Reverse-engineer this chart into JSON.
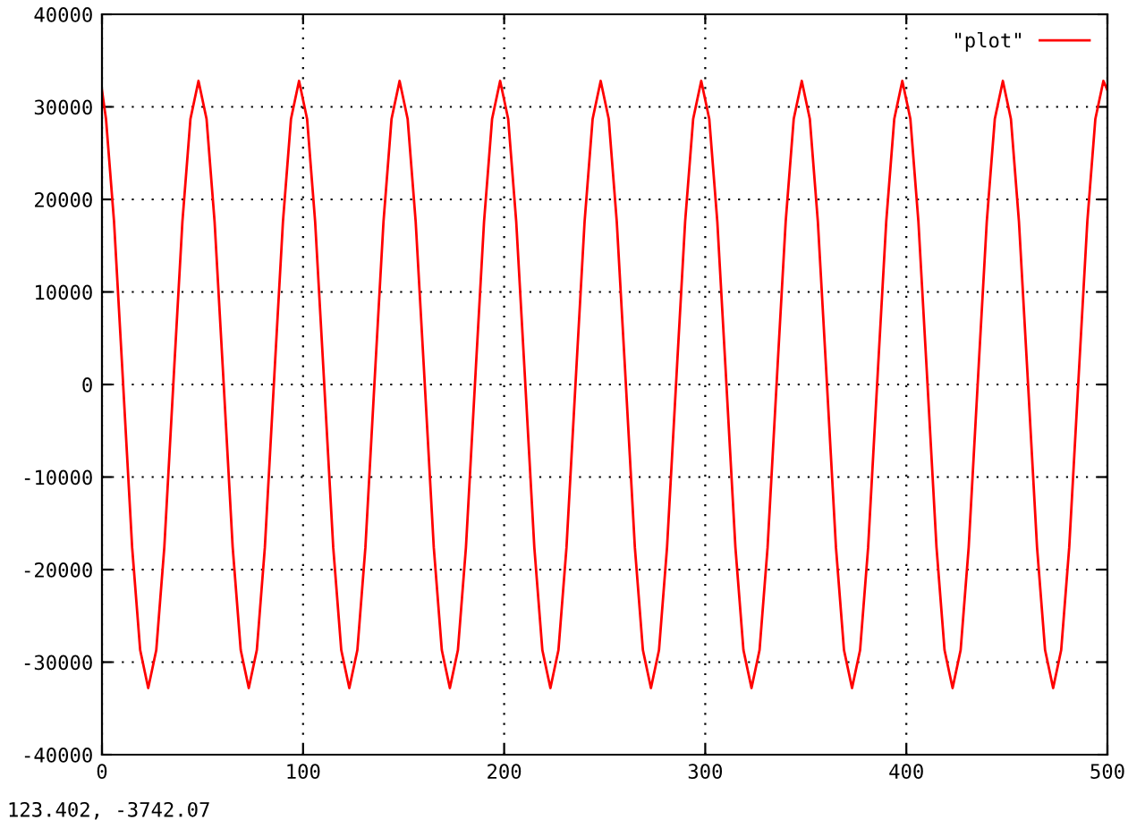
{
  "chart_data": {
    "type": "line",
    "xlim": [
      0,
      500
    ],
    "ylim": [
      -40000,
      40000
    ],
    "xticks": [
      0,
      100,
      200,
      300,
      400,
      500
    ],
    "yticks": [
      -40000,
      -30000,
      -20000,
      -10000,
      0,
      10000,
      20000,
      30000,
      40000
    ],
    "grid": true,
    "legend": "top right",
    "marker": "none",
    "line_style": "solid",
    "annotations": [
      "123.402, -3742.07"
    ],
    "series": [
      {
        "name": "\"plot\"",
        "color": "#ff0000",
        "x": [
          0,
          2,
          6,
          10,
          15,
          19,
          23,
          27,
          31,
          36,
          40,
          44,
          48,
          52,
          56,
          60,
          65,
          69,
          73,
          77,
          81,
          86,
          90,
          94,
          98,
          102,
          106,
          110,
          115,
          119,
          123,
          127,
          131,
          136,
          140,
          144,
          148,
          152,
          156,
          160,
          165,
          169,
          173,
          177,
          181,
          186,
          190,
          194,
          198,
          202,
          206,
          210,
          215,
          219,
          223,
          227,
          231,
          236,
          240,
          244,
          248,
          252,
          256,
          260,
          265,
          269,
          273,
          277,
          281,
          286,
          290,
          294,
          298,
          302,
          306,
          310,
          315,
          319,
          323,
          327,
          331,
          336,
          340,
          344,
          348,
          352,
          356,
          360,
          365,
          369,
          373,
          377,
          381,
          386,
          390,
          394,
          398,
          402,
          406,
          410,
          415,
          419,
          423,
          427,
          431,
          436,
          440,
          444,
          448,
          452,
          456,
          460,
          465,
          469,
          473,
          477,
          481,
          486,
          490,
          494,
          498,
          500
        ],
        "values": [
          31800,
          28700,
          17600,
          2100,
          -17600,
          -28700,
          -32800,
          -28700,
          -17600,
          2100,
          17600,
          28700,
          32800,
          28700,
          17600,
          2100,
          -17600,
          -28700,
          -32800,
          -28700,
          -17600,
          2100,
          17600,
          28700,
          32800,
          28700,
          17600,
          2100,
          -17600,
          -28700,
          -32800,
          -28700,
          -17600,
          2100,
          17600,
          28700,
          32800,
          28700,
          17600,
          2100,
          -17600,
          -28700,
          -32800,
          -28700,
          -17600,
          2100,
          17600,
          28700,
          32800,
          28700,
          17600,
          2100,
          -17600,
          -28700,
          -32800,
          -28700,
          -17600,
          2100,
          17600,
          28700,
          32800,
          28700,
          17600,
          2100,
          -17600,
          -28700,
          -32800,
          -28700,
          -17600,
          2100,
          17600,
          28700,
          32800,
          28700,
          17600,
          2100,
          -17600,
          -28700,
          -32800,
          -28700,
          -17600,
          2100,
          17600,
          28700,
          32800,
          28700,
          17600,
          2100,
          -17600,
          -28700,
          -32800,
          -28700,
          -17600,
          2100,
          17600,
          28700,
          32800,
          28700,
          17600,
          2100,
          -17600,
          -28700,
          -32800,
          -28700,
          -17600,
          2100,
          17600,
          28700,
          32800,
          28700,
          17600,
          2100,
          -17600,
          -28700,
          -32800,
          -28700,
          -17600,
          2100,
          17600,
          28700,
          32800,
          31800
        ]
      }
    ]
  }
}
